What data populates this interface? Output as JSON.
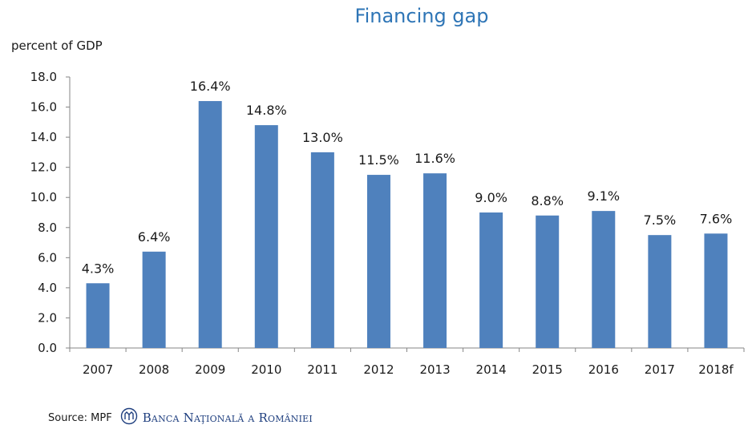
{
  "chart_data": {
    "type": "bar",
    "title": "Financing gap",
    "ylabel": "percent of GDP",
    "xlabel": "",
    "categories": [
      "2007",
      "2008",
      "2009",
      "2010",
      "2011",
      "2012",
      "2013",
      "2014",
      "2015",
      "2016",
      "2017",
      "2018f"
    ],
    "values": [
      4.3,
      6.4,
      16.4,
      14.8,
      13.0,
      11.5,
      11.6,
      9.0,
      8.8,
      9.1,
      7.5,
      7.6
    ],
    "data_labels": [
      "4.3%",
      "6.4%",
      "16.4%",
      "14.8%",
      "13.0%",
      "11.5%",
      "11.6%",
      "9.0%",
      "8.8%",
      "9.1%",
      "7.5%",
      "7.6%"
    ],
    "yticks": [
      "0.0",
      "2.0",
      "4.0",
      "6.0",
      "8.0",
      "10.0",
      "12.0",
      "14.0",
      "16.0",
      "18.0"
    ],
    "ylim": [
      0,
      18
    ],
    "grid": false,
    "bar_color": "#4f81bd"
  },
  "footer": {
    "source": "Source: MPF",
    "logo_name": "Banca Naţională a României",
    "logo_icon": "bnr-emblem-icon"
  }
}
